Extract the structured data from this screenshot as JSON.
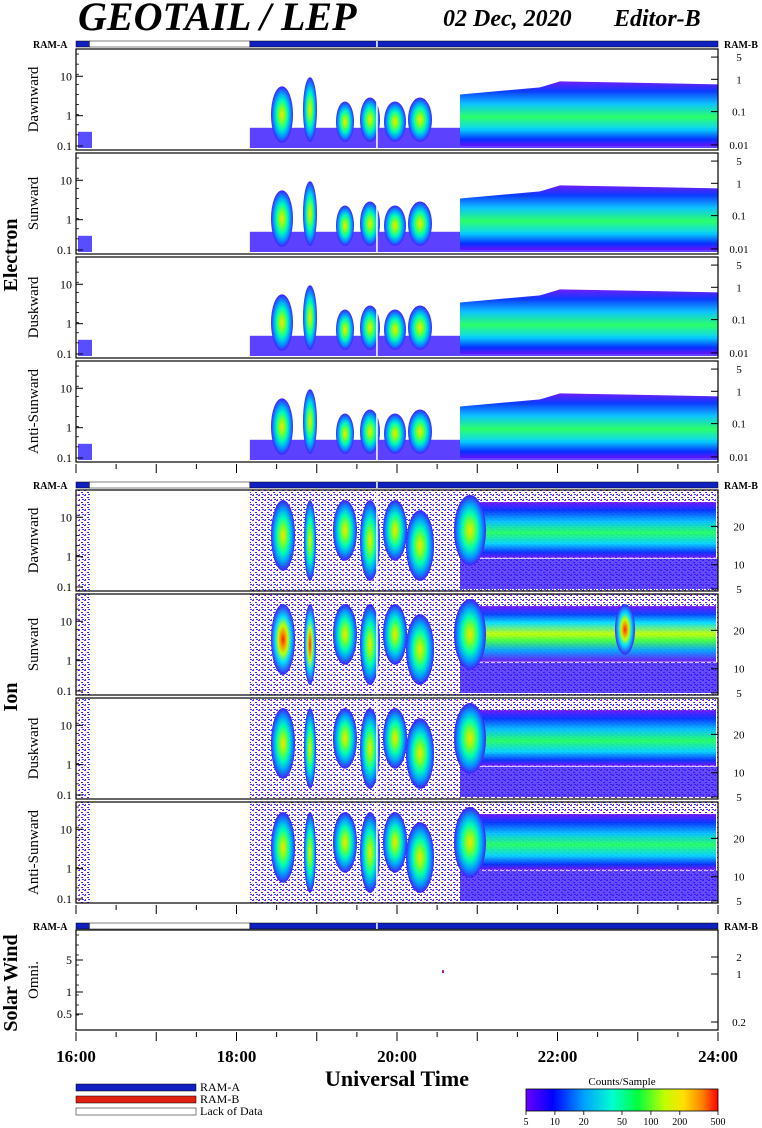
{
  "header": {
    "title": "GEOTAIL / LEP",
    "date": "02 Dec, 2020",
    "editor": "Editor-B"
  },
  "chart_data": {
    "type": "heatmap",
    "x_axis": {
      "label": "Universal Time",
      "range": [
        "16:00",
        "24:00"
      ],
      "ticks": [
        "16:00",
        "18:00",
        "20:00",
        "22:00",
        "24:00"
      ]
    },
    "mode_bar": {
      "left_label": "RAM-A",
      "right_label": "RAM-B",
      "segments": [
        {
          "mode": "RAM-A",
          "start": "16:00",
          "end": "16:10"
        },
        {
          "mode": "Lack of Data",
          "start": "16:10",
          "end": "18:10"
        },
        {
          "mode": "RAM-A",
          "start": "18:10",
          "end": "24:00"
        }
      ]
    },
    "colorbar": {
      "title": "Counts/Sample",
      "ticks": [
        "5",
        "10",
        "20",
        "50",
        "100",
        "200",
        "500"
      ],
      "colors": [
        "#6a00ff",
        "#0000ff",
        "#00a0ff",
        "#00ffd0",
        "#00ff40",
        "#c0ff00",
        "#ffe000",
        "#ff8000",
        "#ff0000"
      ]
    },
    "legend": [
      {
        "label": "RAM-A",
        "color": "#1020c0"
      },
      {
        "label": "RAM-B",
        "color": "#e02010"
      },
      {
        "label": "Lack of Data",
        "color": "#ffffff"
      }
    ],
    "groups": [
      {
        "name": "Electron",
        "panels": [
          {
            "name": "Dawnward",
            "left_ticks": [
              "10",
              "1",
              "0.1"
            ],
            "right_ticks": [
              "5",
              "1",
              "0.1",
              "0.01"
            ],
            "data_gap": [
              "16:10",
              "18:10"
            ],
            "intensity": "low-medium, rising after 21:00"
          },
          {
            "name": "Sunward",
            "left_ticks": [
              "10",
              "1",
              "0.1"
            ],
            "right_ticks": [
              "5",
              "1",
              "0.1",
              "0.01"
            ],
            "data_gap": [
              "16:10",
              "18:10"
            ],
            "intensity": "medium, peaks near 22:30"
          },
          {
            "name": "Duskward",
            "left_ticks": [
              "10",
              "1",
              "0.1"
            ],
            "right_ticks": [
              "5",
              "1",
              "0.1",
              "0.01"
            ],
            "data_gap": [
              "16:10",
              "18:10"
            ],
            "intensity": "low-medium"
          },
          {
            "name": "Anti-Sunward",
            "left_ticks": [
              "10",
              "1",
              "0.1"
            ],
            "right_ticks": [
              "5",
              "1",
              "0.1",
              "0.01"
            ],
            "data_gap": [
              "16:10",
              "18:10"
            ],
            "intensity": "medium after 21:30"
          }
        ]
      },
      {
        "name": "Ion",
        "panels": [
          {
            "name": "Dawnward",
            "left_ticks": [
              "10",
              "1",
              "0.1"
            ],
            "right_ticks": [
              "20",
              "10",
              "5"
            ],
            "data_gap": [
              "16:10",
              "18:10"
            ],
            "intensity": "medium after 21:00"
          },
          {
            "name": "Sunward",
            "left_ticks": [
              "10",
              "1",
              "0.1"
            ],
            "right_ticks": [
              "20",
              "10",
              "5"
            ],
            "data_gap": [
              "16:10",
              "18:10"
            ],
            "intensity": "high near 18:35 and 22:50"
          },
          {
            "name": "Duskward",
            "left_ticks": [
              "10",
              "1",
              "0.1"
            ],
            "right_ticks": [
              "20",
              "10",
              "5"
            ],
            "data_gap": [
              "16:10",
              "18:10"
            ],
            "intensity": "medium"
          },
          {
            "name": "Anti-Sunward",
            "left_ticks": [
              "10",
              "1",
              "0.1"
            ],
            "right_ticks": [
              "20",
              "10",
              "5"
            ],
            "data_gap": [
              "16:10",
              "18:10"
            ],
            "intensity": "medium after 21:30"
          }
        ]
      },
      {
        "name": "Solar Wind",
        "panels": [
          {
            "name": "Omni.",
            "left_ticks": [
              "5",
              "1",
              "0.5"
            ],
            "right_ticks": [
              "2",
              "1",
              "0.2"
            ],
            "data_gap": [],
            "intensity": "none"
          }
        ]
      }
    ]
  }
}
